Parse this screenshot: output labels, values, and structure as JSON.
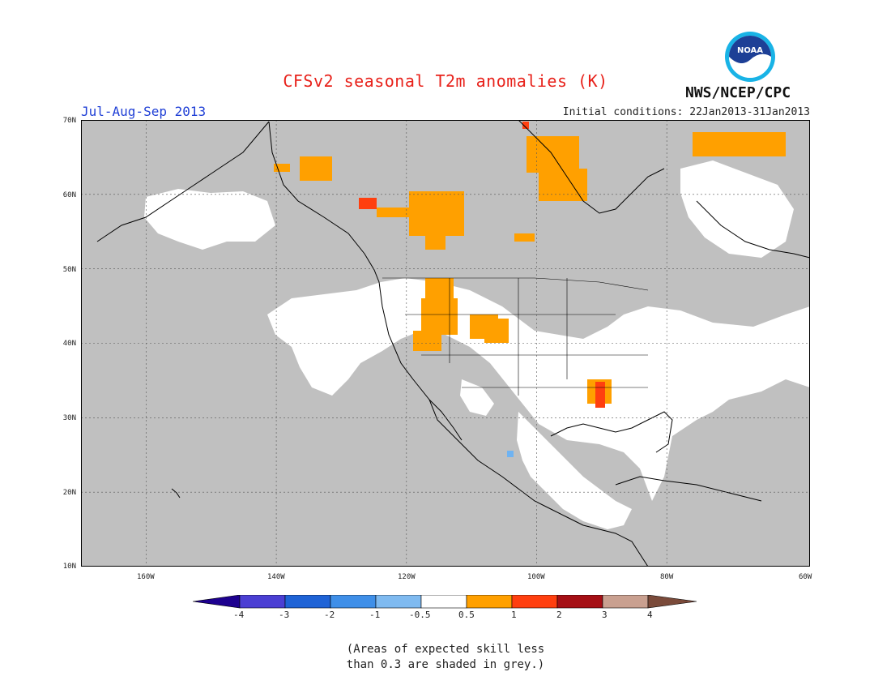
{
  "header": {
    "title": "CFSv2 seasonal T2m anomalies (K)",
    "season": "Jul-Aug-Sep 2013",
    "initial_conditions": "Initial conditions: 22Jan2013-31Jan2013",
    "agency": "NWS/NCEP/CPC",
    "logo_text": "NOAA"
  },
  "map": {
    "lat_labels": [
      "70N",
      "60N",
      "50N",
      "40N",
      "30N",
      "20N",
      "10N"
    ],
    "lon_labels": [
      "160W",
      "140W",
      "120W",
      "100W",
      "80W",
      "60W"
    ],
    "lat_range": [
      10,
      70
    ],
    "lon_range": [
      -172,
      -60
    ],
    "colors": {
      "ocean_grey": "#c0c0c0",
      "land_white": "#ffffff",
      "orange": "#ffa000",
      "red": "#ff3f0f",
      "light_blue": "#6fb3f2",
      "coast": "#000000"
    }
  },
  "colorbar": {
    "levels": [
      "-4",
      "-3",
      "-2",
      "-1",
      "-0.5",
      "0.5",
      "1",
      "2",
      "3",
      "4"
    ],
    "colors": [
      "#1d008f",
      "#4b3fd3",
      "#1f63d6",
      "#3f8fe8",
      "#7fbaf0",
      "#ffffff",
      "#ffa000",
      "#ff3f0f",
      "#a50f15",
      "#c9a090",
      "#7a4a3a"
    ]
  },
  "note": {
    "line1": "(Areas of expected skill less",
    "line2": "than 0.3 are shaded in grey.)"
  }
}
